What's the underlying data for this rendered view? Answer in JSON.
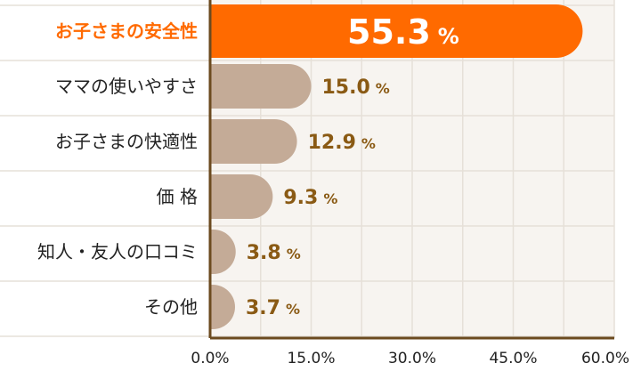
{
  "chart_data": {
    "type": "bar",
    "orientation": "horizontal",
    "categories": [
      "お子さまの安全性",
      "ママの使いやすさ",
      "お子さまの快適性",
      "価 格",
      "知人・友人の口コミ",
      "その他"
    ],
    "values": [
      55.3,
      15.0,
      12.9,
      9.3,
      3.8,
      3.7
    ],
    "value_labels": [
      "55.3",
      "15.0",
      "12.9",
      "9.3",
      "3.8",
      "3.7"
    ],
    "unit": "%",
    "highlight_index": 0,
    "xlim": [
      0,
      60
    ],
    "xticks": [
      "0.0%",
      "15.0%",
      "30.0%",
      "45.0%",
      "60.0%"
    ],
    "grid": true,
    "colors": {
      "highlight": "#ff6a00",
      "bar": "#c4ab97",
      "axis": "#6b4a1f",
      "grid": "#e6e0d8",
      "highlight_label": "#ff6a00",
      "value_text": "#8a5a14",
      "stripe": "#f7f4f0"
    }
  }
}
